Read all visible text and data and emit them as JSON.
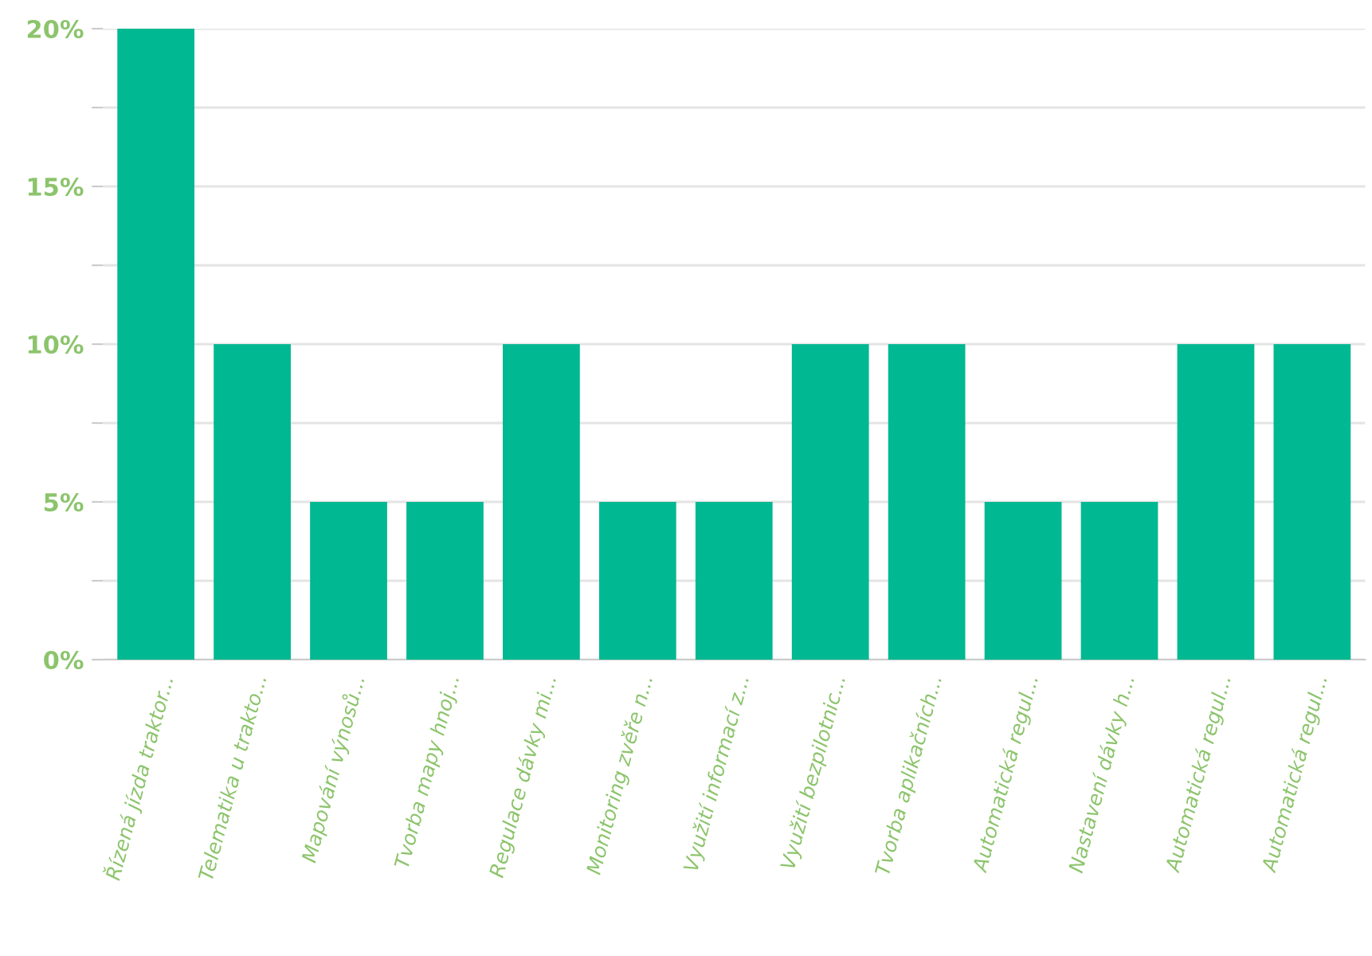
{
  "chart_data": {
    "type": "bar",
    "categories": [
      "Řízená jízda traktor...",
      "Telematika u trakto...",
      "Mapování výnosů...",
      "Tvorba mapy hnoj...",
      "Regulace dávky mi...",
      "Monitoring zvěře n...",
      "Využití informací z...",
      "Využití bezpilotnic...",
      "Tvorba aplikačních...",
      "Automatická regul...",
      "Nastavení dávky h...",
      "Automatická regul...",
      "Automatická regul..."
    ],
    "values": [
      20,
      10,
      5,
      5,
      10,
      5,
      5,
      10,
      10,
      5,
      5,
      10,
      10
    ],
    "color": "#00b891",
    "ylim": [
      0,
      20
    ],
    "yticks": [
      {
        "value": 0,
        "label": "0%"
      },
      {
        "value": 2.5,
        "label": null
      },
      {
        "value": 5,
        "label": "5%"
      },
      {
        "value": 7.5,
        "label": null
      },
      {
        "value": 10,
        "label": "10%"
      },
      {
        "value": 12.5,
        "label": null
      },
      {
        "value": 15,
        "label": "15%"
      },
      {
        "value": 17.5,
        "label": null
      },
      {
        "value": 20,
        "label": "20%"
      }
    ],
    "grid": "y"
  }
}
